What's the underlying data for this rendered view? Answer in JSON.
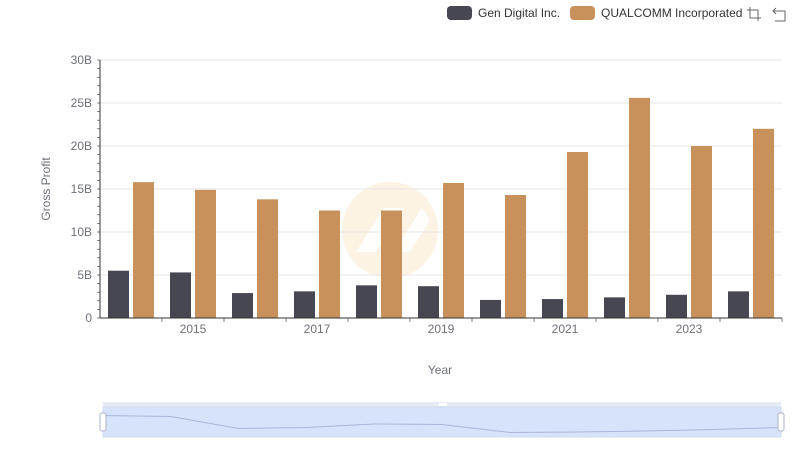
{
  "legend": {
    "items": [
      {
        "label": "Gen Digital Inc.",
        "color": "#474752"
      },
      {
        "label": "QUALCOMM Incorporated",
        "color": "#c8915c"
      }
    ]
  },
  "toolbox": {
    "icons": [
      "zoom-select-icon",
      "zoom-reset-icon"
    ]
  },
  "colors": {
    "axis": "#333333",
    "grid": "#e6e6e6",
    "label": "#6e7079",
    "watermark": "#fdf3e4",
    "zoom_fill": "#d7e3fa",
    "zoom_border": "#d2dbee"
  },
  "chart_data": {
    "type": "bar",
    "title": "",
    "xlabel": "Year",
    "ylabel": "Gross Profit",
    "categories": [
      "2014",
      "2015",
      "2016",
      "2017",
      "2018",
      "2019",
      "2020",
      "2021",
      "2022",
      "2023",
      "2024"
    ],
    "x_tick_labels": [
      "2015",
      "2017",
      "2019",
      "2021",
      "2023"
    ],
    "y_tick_labels": [
      "0",
      "5B",
      "10B",
      "15B",
      "20B",
      "25B",
      "30B"
    ],
    "ylim": [
      0,
      30
    ],
    "y_unit": "B",
    "grid": "horizontal",
    "legend_position": "top-right",
    "series": [
      {
        "name": "Gen Digital Inc.",
        "values": [
          5.5,
          5.3,
          2.9,
          3.1,
          3.8,
          3.7,
          2.1,
          2.2,
          2.4,
          2.7,
          3.1
        ]
      },
      {
        "name": "QUALCOMM Incorporated",
        "values": [
          15.8,
          14.9,
          13.8,
          12.5,
          12.5,
          15.7,
          14.3,
          19.3,
          25.6,
          20.0,
          22.0
        ]
      }
    ]
  }
}
